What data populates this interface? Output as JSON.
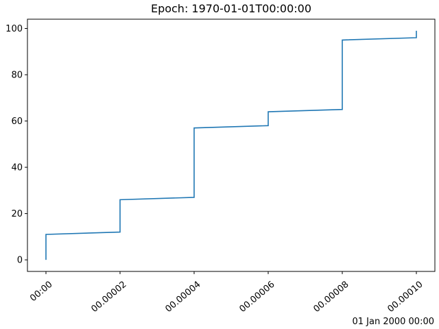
{
  "chart_data": {
    "type": "line",
    "title": "Epoch: 1970-01-01T00:00:00",
    "xlabel": "",
    "ylabel": "",
    "x_offset_label": "01 Jan 2000 00:00",
    "x_tick_labels": [
      "00:00",
      "00.00002",
      "00.00004",
      "00.00006",
      "00.00008",
      "00.00010"
    ],
    "x_ticks": [
      0,
      2e-05,
      4e-05,
      6e-05,
      8e-05,
      0.0001
    ],
    "y_ticks": [
      0,
      20,
      40,
      60,
      80,
      100
    ],
    "y_tick_labels": [
      "0",
      "20",
      "40",
      "60",
      "80",
      "100"
    ],
    "xlim": [
      -5e-06,
      0.000105
    ],
    "ylim": [
      -5,
      104
    ],
    "grid": false,
    "series": [
      {
        "color": "#1f77b4",
        "points": [
          [
            0,
            0
          ],
          [
            0,
            11
          ],
          [
            2e-05,
            12
          ],
          [
            2e-05,
            26
          ],
          [
            4e-05,
            27
          ],
          [
            4e-05,
            57
          ],
          [
            6e-05,
            58
          ],
          [
            6e-05,
            64
          ],
          [
            8e-05,
            65
          ],
          [
            8e-05,
            95
          ],
          [
            0.0001,
            96
          ],
          [
            0.0001,
            99
          ]
        ]
      }
    ]
  }
}
